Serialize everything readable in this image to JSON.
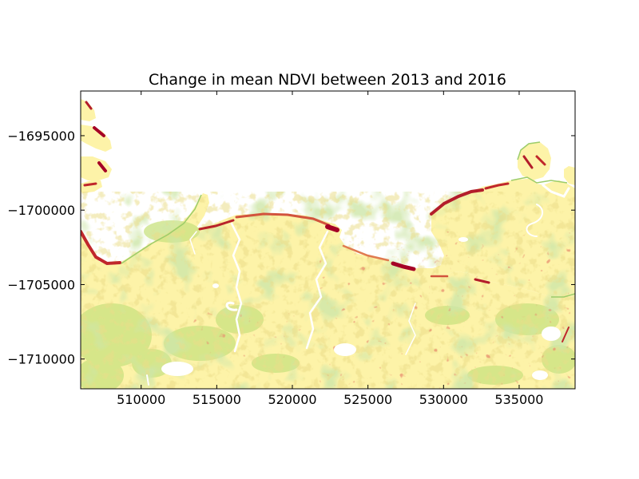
{
  "figure": {
    "title": "Change in mean NDVI between 2013 and 2016"
  },
  "chart_data": {
    "type": "heatmap",
    "title": "Change in mean NDVI between 2013 and 2016",
    "xlabel": "",
    "ylabel": "",
    "xlim": [
      506000,
      538700
    ],
    "ylim": [
      -1712000,
      -1692000
    ],
    "x_ticks": [
      510000,
      515000,
      520000,
      525000,
      530000,
      535000
    ],
    "y_ticks": [
      -1695000,
      -1700000,
      -1705000,
      -1710000
    ],
    "x_tick_labels": [
      "510000",
      "515000",
      "520000",
      "525000",
      "530000",
      "535000"
    ],
    "y_tick_labels": [
      "−1695000",
      "−1700000",
      "−1705000",
      "−1710000"
    ],
    "colormap": "RdYlGn",
    "colors": {
      "strong_decrease": "#a50026",
      "decrease": "#d73027",
      "slight_decrease": "#fdae61",
      "no_change": "#ffffbf",
      "increase": "#a6d96a",
      "strong_increase": "#66bd63",
      "no_data": "#ffffff"
    },
    "grid": false,
    "legend": "none",
    "axes": {
      "x": {
        "scale": "linear"
      },
      "y": {
        "scale": "linear"
      }
    }
  }
}
